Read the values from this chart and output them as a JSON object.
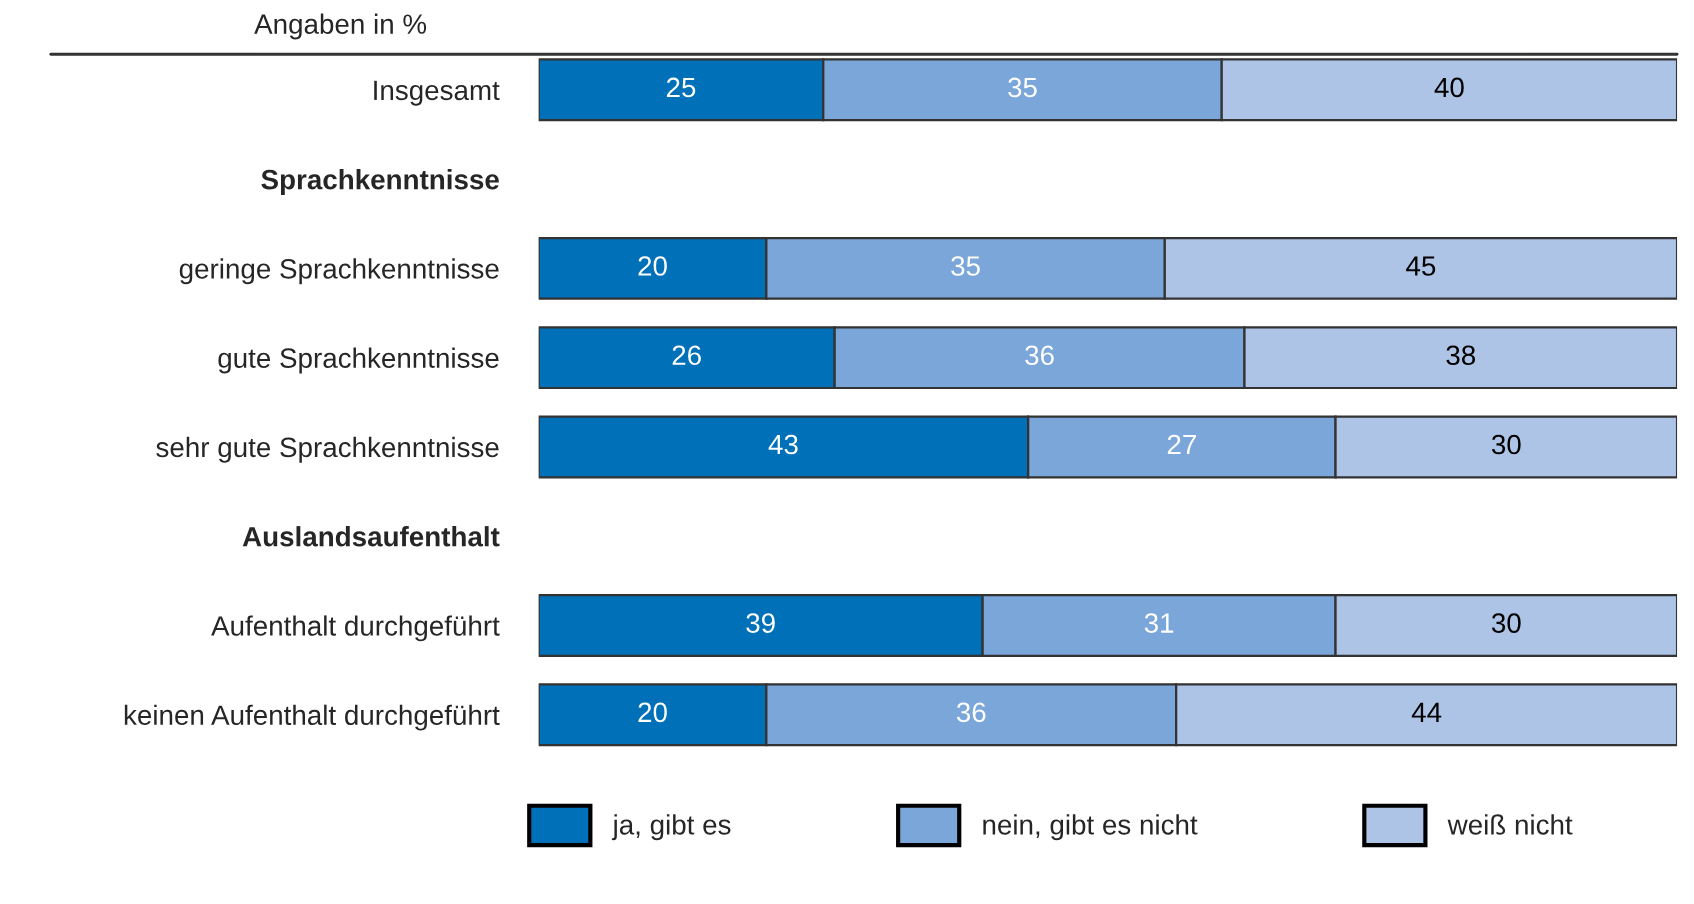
{
  "chart_data": {
    "type": "bar",
    "orientation": "horizontal",
    "stacked": true,
    "subtitle": "Angaben in %",
    "categories": [
      "Insgesamt",
      "Sprachkenntnisse",
      "geringe Sprachkenntnisse",
      "gute Sprachkenntnisse",
      "sehr gute Sprachkenntnisse",
      "Auslandsaufenthalt",
      "Aufenthalt durchgeführt",
      "keinen Aufenthalt durchgeführt"
    ],
    "series": [
      {
        "name": "ja, gibt es",
        "color": "#0070b8",
        "values": [
          25,
          null,
          20,
          26,
          43,
          null,
          39,
          20
        ]
      },
      {
        "name": "nein, gibt es nicht",
        "color": "#7ba6d9",
        "values": [
          35,
          null,
          35,
          36,
          27,
          null,
          31,
          36
        ]
      },
      {
        "name": "weiß nicht",
        "color": "#adc4e6",
        "values": [
          40,
          null,
          45,
          38,
          30,
          null,
          30,
          44
        ]
      }
    ],
    "data_labels": true,
    "legend": "bottom",
    "grid": false,
    "tick_labels": "y"
  }
}
